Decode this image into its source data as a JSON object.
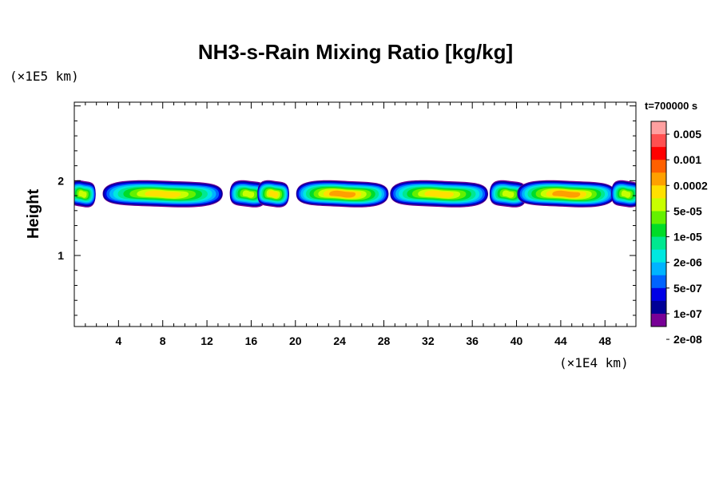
{
  "chart_data": {
    "type": "heatmap",
    "title": "NH3-s-Rain Mixing Ratio [kg/kg]",
    "ylabel": "Height",
    "x_unit": "(×1E4 km)",
    "y_unit": "(×1E5 km)",
    "x_ticks": [
      "4",
      "8",
      "12",
      "16",
      "20",
      "24",
      "28",
      "32",
      "36",
      "40",
      "44",
      "48"
    ],
    "y_ticks": [
      "1",
      "2"
    ],
    "xlim": [
      0,
      50.8
    ],
    "ylim": [
      0.05,
      3.05
    ],
    "time_label": "t=700000 s",
    "colorbar": {
      "labels": [
        "0.005",
        "0.001",
        "0.0002",
        "5e-05",
        "1e-05",
        "2e-06",
        "5e-07",
        "1e-07",
        "2e-08"
      ],
      "colors": [
        "#ffa0a0",
        "#ff5050",
        "#ff0000",
        "#ff6000",
        "#ffa000",
        "#ffe000",
        "#c8ff00",
        "#64f000",
        "#00dc28",
        "#00e890",
        "#00e8e0",
        "#00b4ff",
        "#0064ff",
        "#0000e6",
        "#000096",
        "#780096"
      ]
    },
    "field_layer": {
      "height_range": [
        1.65,
        2.0
      ],
      "core_height": 1.82,
      "segments": [
        {
          "x_range": [
            0.0,
            1.5
          ],
          "max_level": "1e-05"
        },
        {
          "x_range": [
            3.0,
            13.0
          ],
          "max_level": "5e-05"
        },
        {
          "x_range": [
            14.5,
            17.0
          ],
          "max_level": "1e-05"
        },
        {
          "x_range": [
            17.0,
            19.0
          ],
          "max_level": "5e-05"
        },
        {
          "x_range": [
            20.5,
            28.0
          ],
          "max_level": "0.0002"
        },
        {
          "x_range": [
            29.0,
            37.0
          ],
          "max_level": "5e-05"
        },
        {
          "x_range": [
            38.0,
            40.5
          ],
          "max_level": "1e-05"
        },
        {
          "x_range": [
            40.5,
            48.5
          ],
          "max_level": "0.0002"
        },
        {
          "x_range": [
            49.0,
            50.8
          ],
          "max_level": "1e-05"
        }
      ]
    }
  }
}
